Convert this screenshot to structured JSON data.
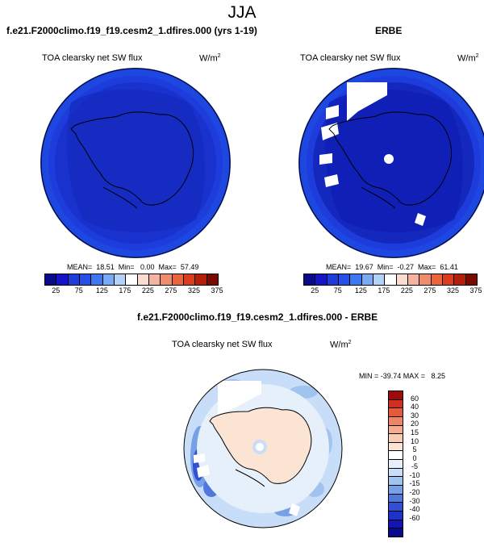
{
  "page_title": "JJA",
  "colors": {
    "abs_levels": [
      "#0a0a8c",
      "#1414c8",
      "#1e3cdc",
      "#2850e6",
      "#3c78f0",
      "#78aaf5",
      "#b4d2f8",
      "#ffffff",
      "#fadcd2",
      "#f5b4a0",
      "#f08c6e",
      "#eb643c",
      "#dc3c1e",
      "#b41e0a",
      "#780a00"
    ],
    "diff_levels": [
      "#0a0a8c",
      "#1414b4",
      "#1e32c8",
      "#3250d2",
      "#5078dc",
      "#78a0e6",
      "#a0c3f0",
      "#c8ddf7",
      "#e6f0fa",
      "#ffffff",
      "#fbe4d4",
      "#f8ccb4",
      "#f4ac90",
      "#ee8664",
      "#e65a3c",
      "#d22d1e",
      "#a00a0a"
    ]
  },
  "panel_left": {
    "case_title": "f.e21.F2000climo.f19_f19.cesm2_1.dfires.000 (yrs 1-19)",
    "var_label": "TOA clearsky net SW flux",
    "units_base": "W/m",
    "units_exp": "2",
    "stats": "MEAN=  18.51  Min=   0.00  Max=  57.49"
  },
  "panel_right": {
    "case_title": "ERBE",
    "var_label": "TOA clearsky net SW flux",
    "units_base": "W/m",
    "units_exp": "2",
    "stats": "MEAN=  19.67  Min=  -0.27  Max=  61.41"
  },
  "abs_colorbar_ticks": [
    "25",
    "75",
    "125",
    "175",
    "225",
    "275",
    "325",
    "375"
  ],
  "panel_diff": {
    "case_title": "f.e21.F2000climo.f19_f19.cesm2_1.dfires.000 - ERBE",
    "var_label": "TOA clearsky net SW flux",
    "units_base": "W/m",
    "units_exp": "2",
    "stats": "MIN = -39.74 MAX =   8.25"
  },
  "diff_colorbar_ticks": [
    "60",
    "40",
    "30",
    "20",
    "15",
    "10",
    "5",
    "0",
    "-5",
    "-10",
    "-15",
    "-20",
    "-30",
    "-40",
    "-60"
  ]
}
